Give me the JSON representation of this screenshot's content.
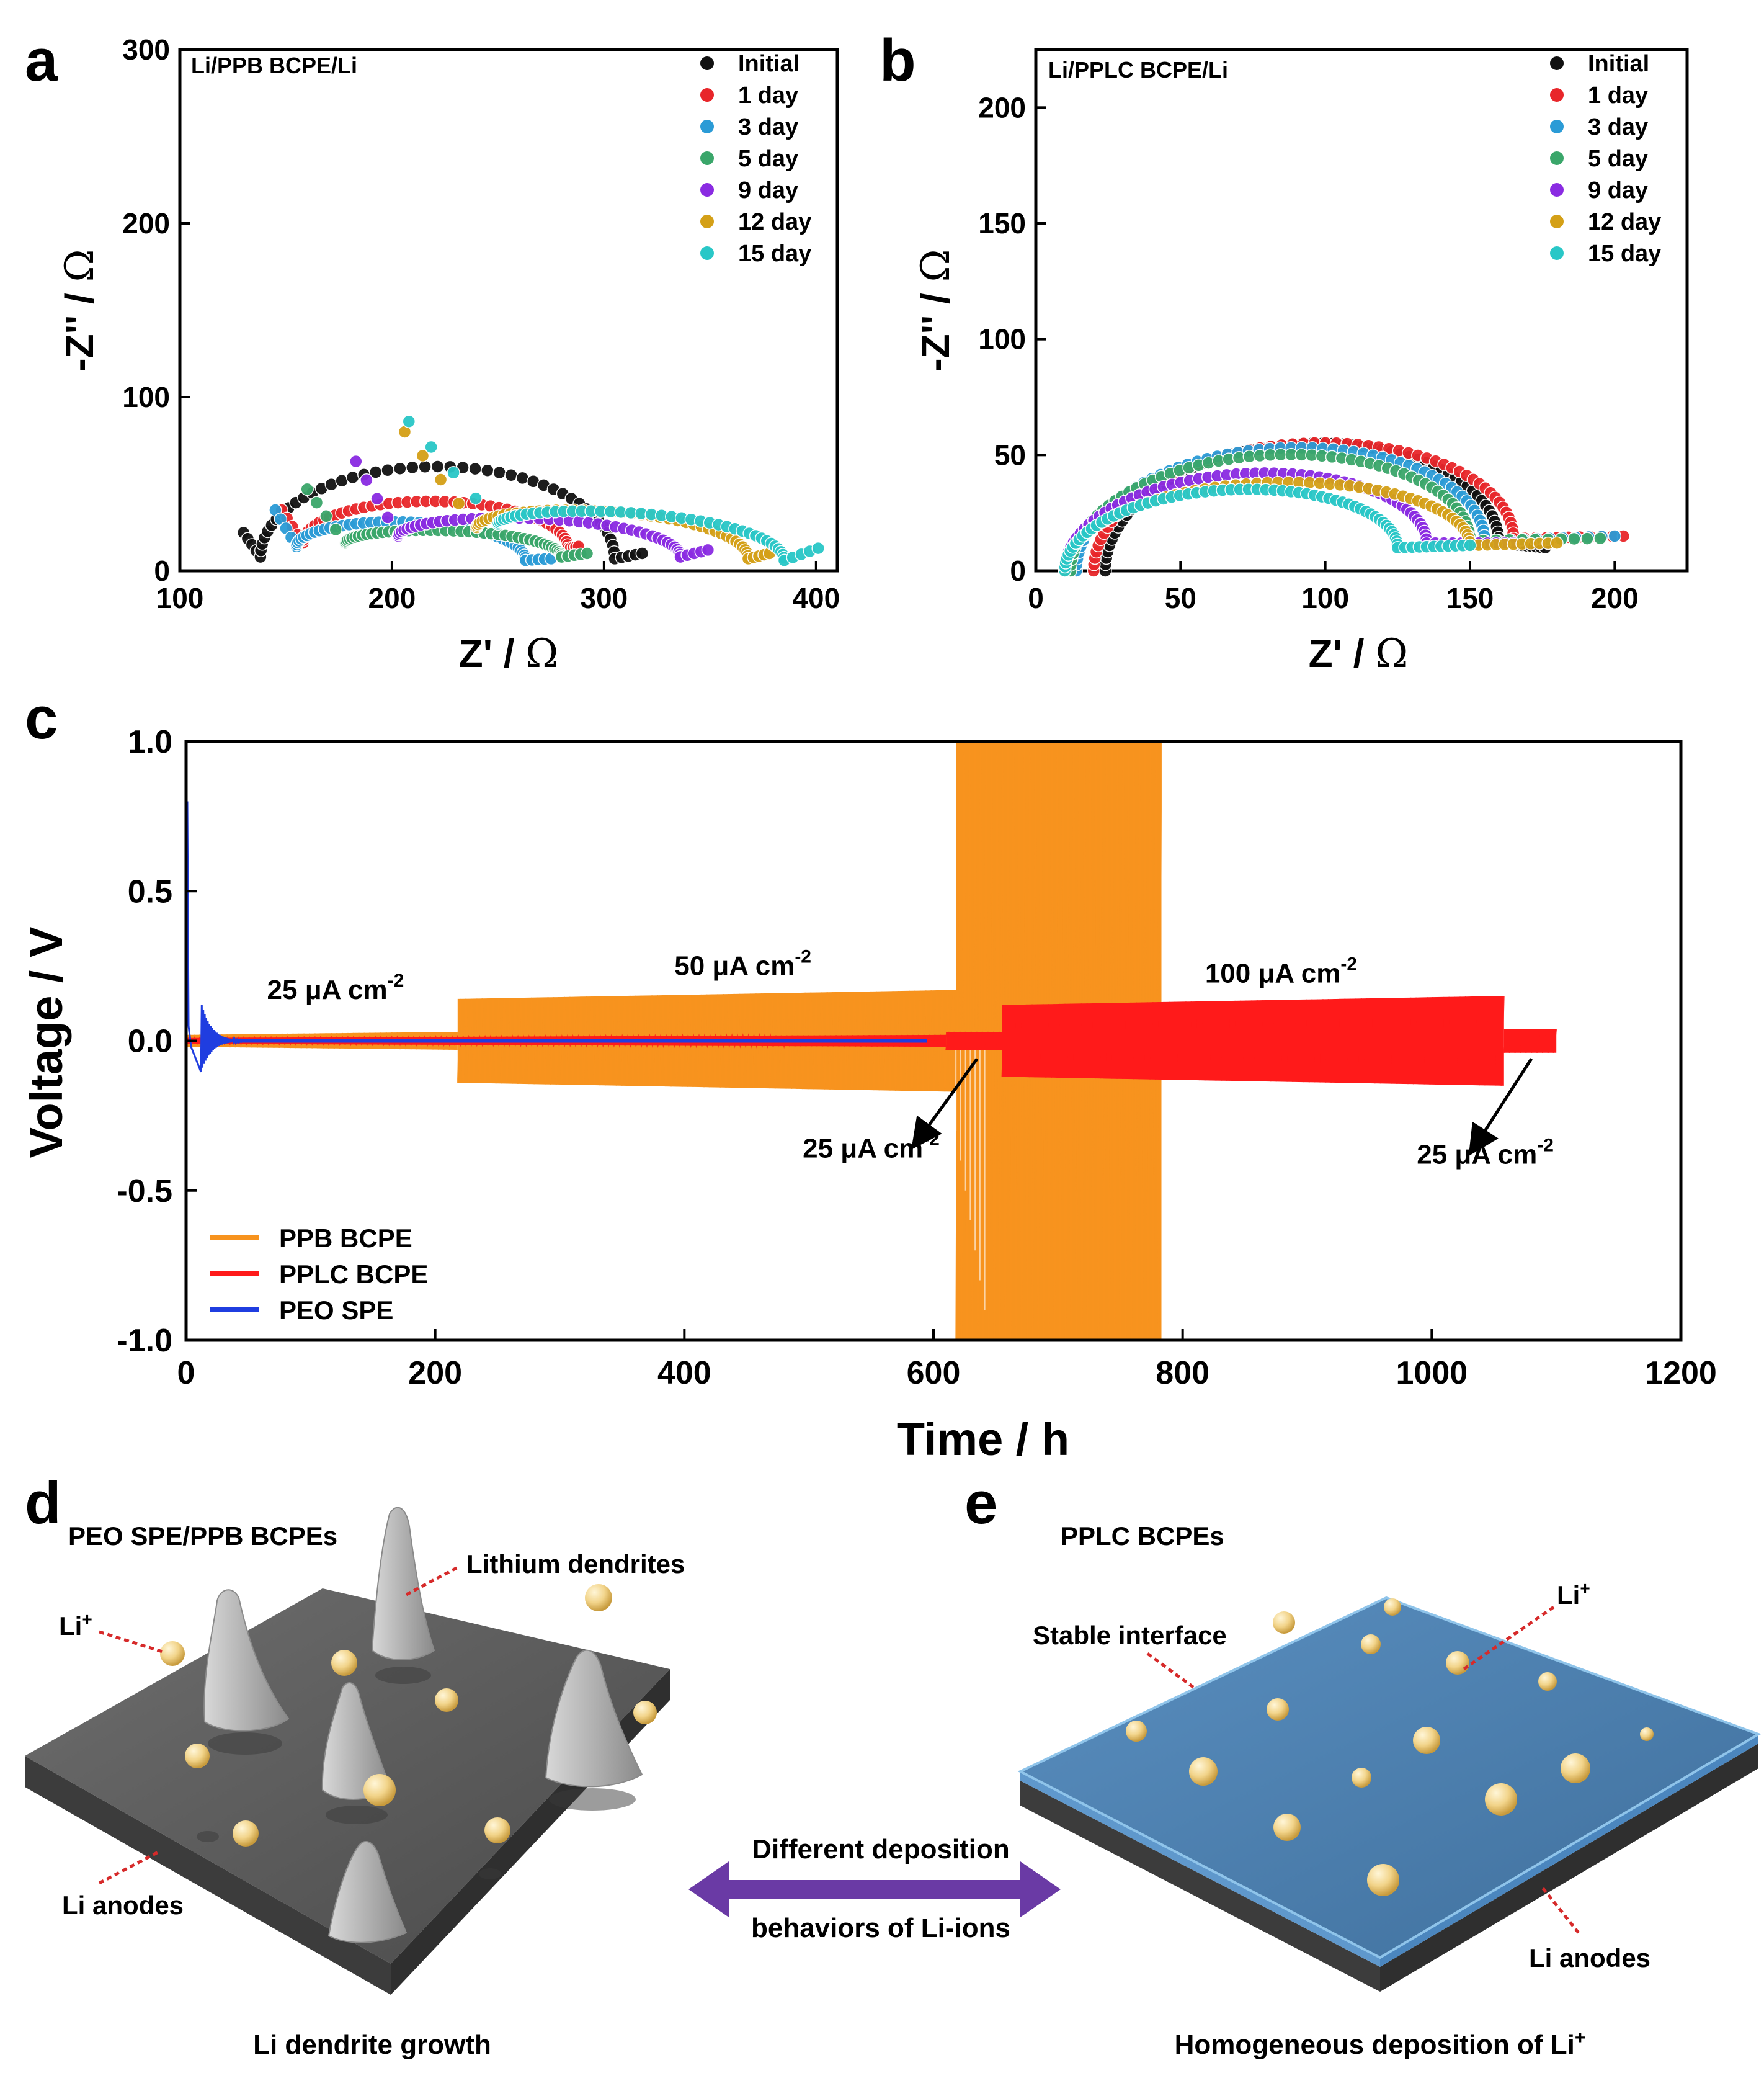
{
  "panel_labels": {
    "a": "a",
    "b": "b",
    "c": "c",
    "d": "d",
    "e": "e"
  },
  "chart_data": [
    {
      "type": "scatter",
      "panel": "a",
      "title": "Li/PPB BCPE/Li",
      "xlabel_main": "Z' / ",
      "ylabel_main": "-Z'' / ",
      "unit_symbol": "Ω",
      "xlim": [
        100,
        410
      ],
      "ylim": [
        0,
        300
      ],
      "xticks": [
        "100",
        "200",
        "300",
        "400"
      ],
      "yticks": [
        "0",
        "100",
        "200",
        "300"
      ],
      "legend_position": "top-right",
      "series": [
        {
          "name": "Initial",
          "color": "#111111",
          "start": [
            130,
            22
          ],
          "min": [
            138,
            8
          ],
          "end": [
            305,
            7
          ],
          "apex": [
            235,
            60
          ],
          "tail": [
            318,
            10
          ]
        },
        {
          "name": "1 day",
          "color": "#e8262a",
          "start": [
            148,
            35
          ],
          "min": [
            158,
            16
          ],
          "end": [
            283,
            13
          ],
          "apex": [
            232,
            40
          ],
          "tail": [
            288,
            14
          ]
        },
        {
          "name": "3 day",
          "color": "#2b9bd6",
          "start": [
            145,
            35
          ],
          "min": [
            155,
            14
          ],
          "end": [
            263,
            6
          ],
          "apex": [
            210,
            28
          ],
          "tail": [
            275,
            7
          ]
        },
        {
          "name": "5 day",
          "color": "#3aa66a",
          "start": [
            160,
            47
          ],
          "min": [
            178,
            16
          ],
          "end": [
            280,
            8
          ],
          "apex": [
            255,
            23
          ],
          "tail": [
            292,
            10
          ]
        },
        {
          "name": "9 day",
          "color": "#8a2be2",
          "start": [
            183,
            63
          ],
          "min": [
            203,
            20
          ],
          "end": [
            336,
            8
          ],
          "apex": [
            285,
            30
          ],
          "tail": [
            349,
            12
          ]
        },
        {
          "name": "12 day",
          "color": "#d4a017",
          "start": [
            206,
            80
          ],
          "min": [
            240,
            25
          ],
          "end": [
            368,
            7
          ],
          "apex": [
            330,
            34
          ],
          "tail": [
            378,
            10
          ]
        },
        {
          "name": "15 day",
          "color": "#29c7c7",
          "start": [
            208,
            86
          ],
          "min": [
            250,
            27
          ],
          "end": [
            385,
            6
          ],
          "apex": [
            345,
            33
          ],
          "tail": [
            401,
            13
          ]
        }
      ]
    },
    {
      "type": "scatter",
      "panel": "b",
      "title": "Li/PPLC BCPE/Li",
      "xlabel_main": "Z' / ",
      "ylabel_main": "-Z'' / ",
      "unit_symbol": "Ω",
      "xlim": [
        0,
        225
      ],
      "ylim": [
        0,
        225
      ],
      "xticks": [
        "0",
        "50",
        "100",
        "150",
        "200"
      ],
      "yticks": [
        "0",
        "50",
        "100",
        "150",
        "200"
      ],
      "legend_position": "top-right",
      "series": [
        {
          "name": "Initial",
          "color": "#111111",
          "start": [
            24,
            0
          ],
          "end": [
            160,
            12
          ],
          "apex": [
            100,
            55
          ],
          "tail": [
            176,
            10
          ]
        },
        {
          "name": "1 day",
          "color": "#e8262a",
          "start": [
            20,
            0
          ],
          "end": [
            165,
            14
          ],
          "apex": [
            100,
            55
          ],
          "tail": [
            203,
            15
          ]
        },
        {
          "name": "3 day",
          "color": "#2b9bd6",
          "start": [
            14,
            0
          ],
          "end": [
            155,
            13
          ],
          "apex": [
            95,
            53
          ],
          "tail": [
            200,
            15
          ]
        },
        {
          "name": "5 day",
          "color": "#3aa66a",
          "start": [
            12,
            0
          ],
          "end": [
            150,
            13
          ],
          "apex": [
            95,
            50
          ],
          "tail": [
            195,
            14
          ]
        },
        {
          "name": "9 day",
          "color": "#8a2be2",
          "start": [
            10,
            0
          ],
          "end": [
            135,
            12
          ],
          "apex": [
            75,
            42
          ],
          "tail": [
            165,
            12
          ]
        },
        {
          "name": "12 day",
          "color": "#d4a017",
          "start": [
            10,
            0
          ],
          "end": [
            150,
            11
          ],
          "apex": [
            90,
            38
          ],
          "tail": [
            180,
            12
          ]
        },
        {
          "name": "15 day",
          "color": "#29c7c7",
          "start": [
            10,
            0
          ],
          "end": [
            125,
            10
          ],
          "apex": [
            80,
            35
          ],
          "tail": [
            150,
            11
          ]
        }
      ]
    },
    {
      "type": "line",
      "panel": "c",
      "xlabel": "Time / h",
      "ylabel": "Voltage / V",
      "xlim": [
        0,
        1200
      ],
      "ylim": [
        -1.0,
        1.0
      ],
      "xticks": [
        "0",
        "200",
        "400",
        "600",
        "800",
        "1000",
        "1200"
      ],
      "yticks": [
        "-1.0",
        "-0.5",
        "0.0",
        "0.5",
        "1.0"
      ],
      "legend_position": "bottom-left",
      "series": [
        {
          "name": "PPB BCPE",
          "color": "#f7931e",
          "segments": [
            {
              "t": [
                0,
                218
              ],
              "amp": [
                0.02,
                0.03
              ]
            },
            {
              "t": [
                218,
                618
              ],
              "amp": [
                0.14,
                0.17
              ]
            },
            {
              "t": [
                618,
                783
              ],
              "amp": [
                1.0,
                1.0
              ],
              "failure_start": 645
            }
          ]
        },
        {
          "name": "PPLC BCPE",
          "color": "#ff1a1a",
          "segments": [
            {
              "t": [
                0,
                610
              ],
              "amp": [
                0.01,
                0.02
              ]
            },
            {
              "t": [
                610,
                655
              ],
              "amp": [
                0.03,
                0.03
              ]
            },
            {
              "t": [
                655,
                1058
              ],
              "amp": [
                0.12,
                0.15
              ]
            },
            {
              "t": [
                1058,
                1100
              ],
              "amp": [
                0.04,
                0.04
              ]
            }
          ]
        },
        {
          "name": "PEO SPE",
          "color": "#1f3de0",
          "segments": [
            {
              "t": [
                0,
                595
              ],
              "amp": [
                0.004,
                0.004
              ],
              "spike": 0.8,
              "ring": 0.13
            }
          ]
        }
      ],
      "annotations": [
        {
          "text_main": "25 μA cm",
          "sup": "-2",
          "pos_h": 65,
          "pos_v": 0.14
        },
        {
          "text_main": "50 μA cm",
          "sup": "-2",
          "pos_h": 392,
          "pos_v": 0.22
        },
        {
          "text_main": "100 μA cm",
          "sup": "-2",
          "pos_h": 818,
          "pos_v": 0.195
        },
        {
          "text_main": "25 μA cm",
          "sup": "-2",
          "pos_h": 495,
          "pos_v": -0.39,
          "arrow_from": [
            635,
            -0.06
          ],
          "arrow_to": [
            588,
            -0.33
          ]
        },
        {
          "text_main": "25 μA cm",
          "sup": "-2",
          "pos_h": 988,
          "pos_v": -0.41,
          "arrow_from": [
            1080,
            -0.06
          ],
          "arrow_to": [
            1035,
            -0.35
          ]
        }
      ]
    }
  ],
  "schematic": {
    "d_title": "PEO SPE/PPB BCPEs",
    "d_dendrites": "Lithium dendrites",
    "d_li_ion": "Li",
    "d_li_ion_sup": "+",
    "d_anode": "Li anodes",
    "d_caption": "Li dendrite growth",
    "arrow_top": "Different deposition",
    "arrow_bottom": "behaviors of Li-ions",
    "e_title": "PPLC BCPEs",
    "e_interface": "Stable interface",
    "e_li_ion": "Li",
    "e_li_ion_sup": "+",
    "e_anode": "Li anodes",
    "e_caption": "Homogeneous deposition of Li",
    "e_caption_sup": "+",
    "colors": {
      "slab_top": "#5a5a5a",
      "slab_side": "#3c3c3c",
      "film": "#4a7aa8",
      "film_edge": "#8fc4ea",
      "ion": "#f2d48a",
      "dendrite": "#b9b9b9",
      "arrow": "#6a3aa5",
      "dotted": "#d62a2a"
    }
  }
}
